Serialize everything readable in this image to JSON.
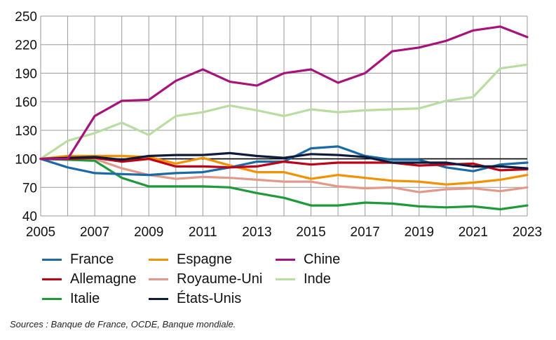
{
  "chart_data": {
    "type": "line",
    "title": "",
    "xlabel": "",
    "ylabel": "",
    "x": [
      2005,
      2006,
      2007,
      2008,
      2009,
      2010,
      2011,
      2012,
      2013,
      2014,
      2015,
      2016,
      2017,
      2018,
      2019,
      2020,
      2021,
      2022,
      2023
    ],
    "xticks": [
      "2005",
      "2007",
      "2009",
      "2011",
      "2013",
      "2015",
      "2017",
      "2019",
      "2021",
      "2023"
    ],
    "yticks": [
      "40",
      "70",
      "100",
      "130",
      "160",
      "190",
      "220",
      "250"
    ],
    "ylim": [
      40,
      250
    ],
    "xlim": [
      2005,
      2023
    ],
    "reference_line": 100,
    "grid": true,
    "legend_position": "bottom",
    "series": [
      {
        "name": "France",
        "color": "#1b6aa6",
        "values": [
          100,
          91,
          85,
          84,
          83,
          85,
          86,
          91,
          97,
          97,
          111,
          113,
          103,
          99,
          99,
          91,
          87,
          94,
          96
        ]
      },
      {
        "name": "Allemagne",
        "color": "#c00016",
        "values": [
          100,
          100,
          101,
          97,
          100,
          92,
          92,
          91,
          92,
          97,
          94,
          96,
          96,
          96,
          93,
          94,
          95,
          88,
          89
        ]
      },
      {
        "name": "Italie",
        "color": "#1f9a3b",
        "values": [
          100,
          99,
          98,
          80,
          71,
          71,
          71,
          70,
          64,
          59,
          51,
          51,
          54,
          53,
          50,
          49,
          50,
          47,
          51
        ]
      },
      {
        "name": "Espagne",
        "color": "#f39200",
        "values": [
          100,
          103,
          103,
          103,
          102,
          95,
          101,
          93,
          86,
          86,
          79,
          83,
          80,
          77,
          76,
          73,
          75,
          78,
          83
        ]
      },
      {
        "name": "Royaume-Uni",
        "color": "#e3998a",
        "values": [
          100,
          100,
          100,
          90,
          83,
          79,
          81,
          80,
          78,
          76,
          76,
          71,
          69,
          70,
          65,
          68,
          69,
          66,
          70
        ]
      },
      {
        "name": "États-Unis",
        "color": "#0f1b3d",
        "values": [
          100,
          101,
          102,
          99,
          103,
          104,
          104,
          106,
          103,
          101,
          105,
          104,
          102,
          96,
          96,
          96,
          92,
          92,
          90
        ]
      },
      {
        "name": "Chine",
        "color": "#a6137c",
        "values": [
          100,
          100,
          145,
          161,
          162,
          182,
          194,
          181,
          177,
          190,
          194,
          180,
          190,
          213,
          217,
          224,
          235,
          239,
          228
        ]
      },
      {
        "name": "Inde",
        "color": "#b9dca0",
        "values": [
          100,
          119,
          127,
          138,
          125,
          145,
          149,
          156,
          151,
          145,
          152,
          149,
          151,
          152,
          153,
          161,
          165,
          195,
          199
        ]
      }
    ]
  },
  "legend": {
    "items": [
      {
        "label": "France",
        "color": "#1b6aa6"
      },
      {
        "label": "Espagne",
        "color": "#f39200"
      },
      {
        "label": "Chine",
        "color": "#a6137c"
      },
      {
        "label": "Allemagne",
        "color": "#c00016"
      },
      {
        "label": "Royaume-Uni",
        "color": "#e3998a"
      },
      {
        "label": "Inde",
        "color": "#b9dca0"
      },
      {
        "label": "Italie",
        "color": "#1f9a3b"
      },
      {
        "label": "États-Unis",
        "color": "#0f1b3d"
      }
    ]
  },
  "source_note": "Sources : Banque de France, OCDE, Banque mondiale."
}
